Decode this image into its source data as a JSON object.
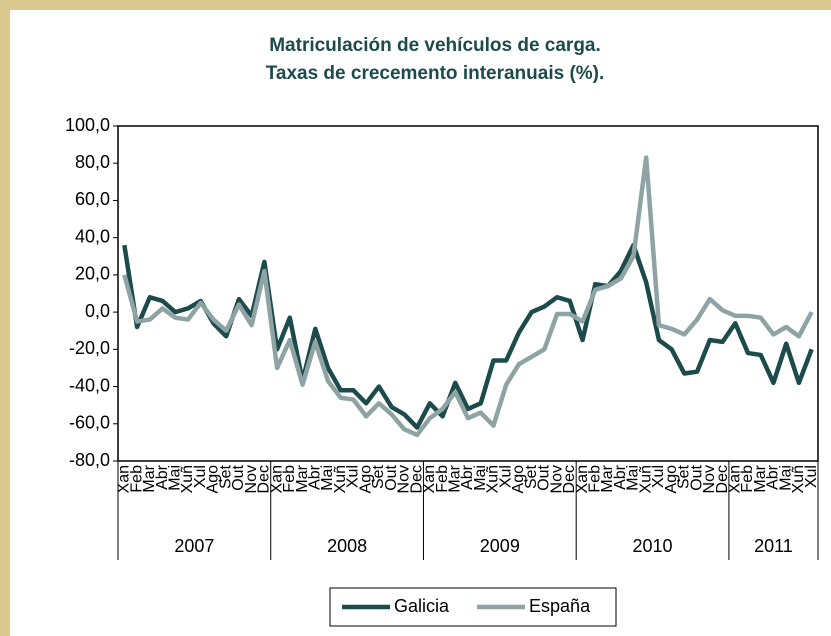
{
  "chart_data": {
    "type": "line",
    "title": "Matriculación de vehículos de carga.",
    "subtitle": "Taxas de crecemento interanuais (%).",
    "categories": [
      "Xan",
      "Feb",
      "Mar",
      "Abr",
      "Mai",
      "Xuñ",
      "Xul",
      "Ago",
      "Set",
      "Out",
      "Nov",
      "Dec",
      "Xan",
      "Feb",
      "Mar",
      "Abr",
      "Mai",
      "Xuñ",
      "Xul",
      "Ago",
      "Set",
      "Out",
      "Nov",
      "Dec",
      "Xan",
      "Feb",
      "Mar",
      "Abr",
      "Mai",
      "Xuñ",
      "Xul",
      "Ago",
      "Set",
      "Out",
      "Nov",
      "Dec",
      "Xan",
      "Feb",
      "Mar",
      "Abr",
      "Mai",
      "Xuñ",
      "Xul",
      "Ago",
      "Set",
      "Out",
      "Nov",
      "Dec",
      "Xan",
      "Feb",
      "Mar",
      "Abr",
      "Mai",
      "Xuñ",
      "Xul"
    ],
    "x_groups": [
      "2007",
      "2008",
      "2009",
      "2010",
      "2011"
    ],
    "series": [
      {
        "name": "Galicia",
        "color": "#1d4b4b",
        "values": [
          36,
          -8,
          8,
          6,
          0,
          2,
          6,
          -6,
          -13,
          7,
          -2,
          27,
          -20,
          -3,
          -37,
          -9,
          -30,
          -42,
          -42,
          -49,
          -40,
          -51,
          -55,
          -62,
          -49,
          -56,
          -38,
          -52,
          -49,
          -26,
          -26,
          -11,
          0,
          3,
          8,
          6,
          -15,
          15,
          14,
          22,
          36,
          16,
          -15,
          -20,
          -33,
          -32,
          -15,
          -16,
          -6,
          -22,
          -23,
          -38,
          -17,
          -38,
          -20
        ]
      },
      {
        "name": "España",
        "color": "#8ea3a3",
        "values": [
          20,
          -5,
          -4,
          2,
          -3,
          -4,
          5,
          -4,
          -10,
          4,
          -7,
          22,
          -30,
          -15,
          -39,
          -16,
          -37,
          -46,
          -47,
          -56,
          -49,
          -55,
          -63,
          -66,
          -57,
          -52,
          -43,
          -57,
          -54,
          -61,
          -39,
          -28,
          -24,
          -20,
          -1,
          -1,
          -5,
          12,
          14,
          18,
          30,
          83,
          -7,
          -9,
          -12,
          -4,
          7,
          1,
          -2,
          -2,
          -3,
          -12,
          -8,
          -13,
          0
        ]
      }
    ],
    "ylim": [
      -80,
      100
    ],
    "yticks": [
      {
        "value": -80,
        "label": "-80,0"
      },
      {
        "value": -60,
        "label": "-60,0"
      },
      {
        "value": -40,
        "label": "-40,0"
      },
      {
        "value": -20,
        "label": "-20,0"
      },
      {
        "value": 0,
        "label": "0,0"
      },
      {
        "value": 20,
        "label": "20,0"
      },
      {
        "value": 40,
        "label": "40,0"
      },
      {
        "value": 60,
        "label": "60,0"
      },
      {
        "value": 80,
        "label": "80,0"
      },
      {
        "value": 100,
        "label": "100,0"
      }
    ],
    "legend": "bottom"
  }
}
